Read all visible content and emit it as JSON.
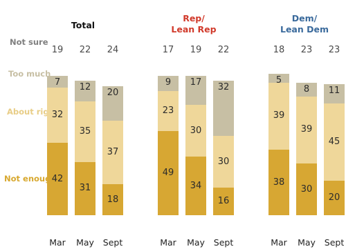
{
  "chart_data": {
    "type": "bar",
    "stacked": true,
    "categories": [
      "Mar",
      "May",
      "Sept"
    ],
    "row_labels": [
      {
        "key": "not_sure",
        "text": "Not sure",
        "color": "#7f7f7f"
      },
      {
        "key": "too_much",
        "text": "Too much",
        "color": "#c7bfa4"
      },
      {
        "key": "about_right",
        "text": "About right",
        "color": "#e8cd86"
      },
      {
        "key": "not_enough",
        "text": "Not enough",
        "color": "#d8a82f"
      }
    ],
    "segment_colors": {
      "too_much": "#c7bfa4",
      "about_right": "#efd79a",
      "not_enough": "#d7a733"
    },
    "groups": [
      {
        "title": "Total",
        "title_color": "#111111",
        "not_sure": [
          19,
          22,
          24
        ],
        "too_much": [
          7,
          12,
          20
        ],
        "about_right": [
          32,
          35,
          37
        ],
        "not_enough": [
          42,
          31,
          18
        ]
      },
      {
        "title": "Rep/ Lean Rep",
        "title_color": "#d13a2b",
        "not_sure": [
          17,
          19,
          22
        ],
        "too_much": [
          9,
          17,
          32
        ],
        "about_right": [
          23,
          30,
          30
        ],
        "not_enough": [
          49,
          34,
          16
        ]
      },
      {
        "title": "Dem/ Lean Dem",
        "title_color": "#3a6a9c",
        "not_sure": [
          18,
          23,
          23
        ],
        "too_much": [
          5,
          8,
          11
        ],
        "about_right": [
          39,
          39,
          45
        ],
        "not_enough": [
          38,
          30,
          20
        ]
      }
    ]
  }
}
